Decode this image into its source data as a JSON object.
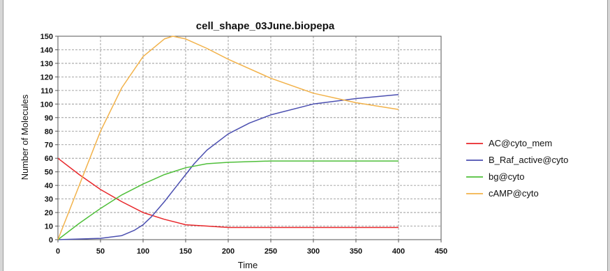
{
  "chart_data": {
    "type": "line",
    "title": "cell_shape_03June.biopepa",
    "xlabel": "Time",
    "ylabel": "Number of Molecules",
    "xlim": [
      0,
      450
    ],
    "ylim": [
      0,
      150
    ],
    "xticks": [
      0,
      50,
      100,
      150,
      200,
      250,
      300,
      350,
      400,
      450
    ],
    "yticks": [
      0,
      10,
      20,
      30,
      40,
      50,
      60,
      70,
      80,
      90,
      100,
      110,
      120,
      130,
      140,
      150
    ],
    "grid": true,
    "legend_position": "right",
    "series": [
      {
        "name": "AC@cyto_mem",
        "color": "#e8262a",
        "x": [
          0,
          25,
          50,
          75,
          100,
          125,
          150,
          175,
          200,
          250,
          300,
          350,
          400
        ],
        "y": [
          60,
          48,
          37,
          28,
          20,
          15,
          11,
          10,
          9,
          9,
          9,
          9,
          9
        ]
      },
      {
        "name": "B_Raf_active@cyto",
        "color": "#4b4fb0",
        "x": [
          0,
          50,
          75,
          90,
          100,
          110,
          125,
          140,
          150,
          160,
          175,
          200,
          225,
          250,
          300,
          350,
          400
        ],
        "y": [
          0,
          1,
          3,
          7,
          11,
          17,
          28,
          40,
          48,
          56,
          66,
          78,
          86,
          92,
          100,
          104,
          107
        ]
      },
      {
        "name": "bg@cyto",
        "color": "#4fbf3a",
        "x": [
          0,
          25,
          50,
          75,
          100,
          125,
          150,
          175,
          200,
          250,
          300,
          350,
          400
        ],
        "y": [
          0,
          12,
          23,
          33,
          41,
          48,
          53,
          56,
          57,
          58,
          58,
          58,
          58
        ]
      },
      {
        "name": "cAMP@cyto",
        "color": "#f2b24a",
        "x": [
          0,
          25,
          50,
          75,
          100,
          125,
          135,
          150,
          175,
          200,
          250,
          300,
          350,
          400
        ],
        "y": [
          0,
          40,
          80,
          112,
          135,
          148,
          150,
          148,
          141,
          133,
          119,
          108,
          101,
          96
        ]
      }
    ]
  }
}
